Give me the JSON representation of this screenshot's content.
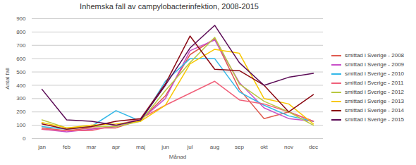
{
  "chart_data": {
    "type": "line",
    "title": "Inhemska fall av campylobacterinfektion, 2008-2015",
    "x_label": "Månad",
    "y_label": "Antal fall",
    "categories": [
      "jan",
      "feb",
      "mar",
      "apr",
      "maj",
      "jun",
      "jul",
      "aug",
      "sep",
      "okt",
      "nov",
      "dec"
    ],
    "ylim": [
      0,
      900
    ],
    "yticks": [
      0,
      100,
      200,
      300,
      400,
      500,
      600,
      700,
      800,
      900
    ],
    "grid": true,
    "legend": "right",
    "series": [
      {
        "name": "smittad i Sverige - 2008",
        "color": "#e05a4f",
        "values": [
          80,
          60,
          80,
          80,
          140,
          320,
          630,
          750,
          370,
          150,
          200,
          130
        ]
      },
      {
        "name": "smittad i Sverige - 2009",
        "color": "#c84fc8",
        "values": [
          70,
          50,
          70,
          90,
          140,
          300,
          660,
          740,
          420,
          230,
          150,
          130
        ]
      },
      {
        "name": "smittad i Sverige - 2010",
        "color": "#33b8e8",
        "values": [
          90,
          70,
          90,
          210,
          130,
          430,
          600,
          600,
          350,
          250,
          170,
          130
        ]
      },
      {
        "name": "smittad i Sverige - 2011",
        "color": "#f0607a",
        "values": [
          70,
          60,
          60,
          100,
          150,
          250,
          340,
          430,
          290,
          260,
          200,
          130
        ]
      },
      {
        "name": "smittad i Sverige - 2012",
        "color": "#b8c840",
        "values": [
          140,
          80,
          90,
          90,
          130,
          360,
          570,
          760,
          410,
          280,
          200,
          100
        ]
      },
      {
        "name": "smittad i Sverige - 2013",
        "color": "#f8c800",
        "values": [
          120,
          80,
          100,
          110,
          130,
          250,
          560,
          670,
          640,
          300,
          260,
          110
        ]
      },
      {
        "name": "smittad i Sverige - 2014",
        "color": "#8b0a14",
        "values": [
          110,
          70,
          90,
          130,
          150,
          410,
          770,
          520,
          510,
          400,
          200,
          330
        ]
      },
      {
        "name": "smittad i Sverige - 2015",
        "color": "#5a0a55",
        "values": [
          370,
          140,
          130,
          100,
          140,
          400,
          680,
          850,
          570,
          400,
          460,
          490
        ]
      }
    ]
  }
}
